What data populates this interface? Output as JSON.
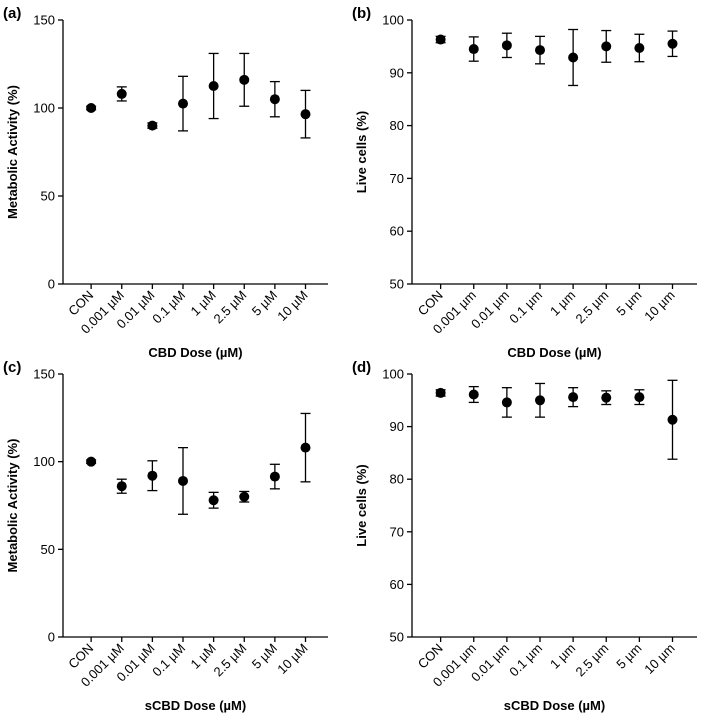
{
  "chart_data": [
    {
      "type": "errorbar",
      "panel_label": "(a)",
      "ylabel": "Metabolic Activity (%)",
      "xlabel": "CBD Dose (µM)",
      "categories": [
        "CON",
        "0.001 µM",
        "0.01 µM",
        "0.1 µM",
        "1 µM",
        "2.5 µM",
        "5 µM",
        "10 µM"
      ],
      "values": [
        100,
        108,
        90,
        102.5,
        112.5,
        116,
        105,
        96.5
      ],
      "errors": [
        1,
        4,
        1.5,
        15.5,
        18.5,
        15,
        10,
        13.5
      ],
      "color": "#000000",
      "ylim": [
        0,
        150
      ],
      "yticks": [
        0,
        50,
        100,
        150
      ]
    },
    {
      "type": "errorbar",
      "panel_label": "(b)",
      "ylabel": "Live cells (%)",
      "xlabel": "CBD Dose (µM)",
      "categories": [
        "CON",
        "0.001 µm",
        "0.01 µm",
        "0.1 µm",
        "1 µm",
        "2.5 µm",
        "5 µm",
        "10 µm"
      ],
      "values": [
        96.3,
        94.5,
        95.2,
        94.3,
        92.9,
        95,
        94.7,
        95.5
      ],
      "errors": [
        0.6,
        2.3,
        2.3,
        2.6,
        5.3,
        3,
        2.6,
        2.4
      ],
      "color": "#000000",
      "ylim": [
        50,
        100
      ],
      "yticks": [
        50,
        60,
        70,
        80,
        90,
        100
      ]
    },
    {
      "type": "errorbar",
      "panel_label": "(c)",
      "ylabel": "Metabolic Activity (%)",
      "xlabel": "sCBD Dose (µM)",
      "categories": [
        "CON",
        "0.001 µM",
        "0.01 µM",
        "0.1 µM",
        "1 µM",
        "2.5 µM",
        "5 µM",
        "10 µM"
      ],
      "values": [
        100,
        86,
        92,
        89,
        78,
        80,
        91.5,
        108
      ],
      "errors": [
        1,
        4,
        8.5,
        19,
        4.5,
        3,
        7,
        19.5
      ],
      "color": "#000000",
      "ylim": [
        0,
        150
      ],
      "yticks": [
        0,
        50,
        100,
        150
      ]
    },
    {
      "type": "errorbar",
      "panel_label": "(d)",
      "ylabel": "Live cells (%)",
      "xlabel": "sCBD Dose (µM)",
      "categories": [
        "CON",
        "0.001 µm",
        "0.01 µm",
        "0.1 µm",
        "1 µm",
        "2.5 µm",
        "5 µm",
        "10 µm"
      ],
      "values": [
        96.4,
        96.1,
        94.6,
        95,
        95.6,
        95.5,
        95.6,
        91.3
      ],
      "errors": [
        0.6,
        1.5,
        2.8,
        3.2,
        1.8,
        1.3,
        1.4,
        7.5
      ],
      "color": "#000000",
      "ylim": [
        50,
        100
      ],
      "yticks": [
        50,
        60,
        70,
        80,
        90,
        100
      ]
    }
  ]
}
